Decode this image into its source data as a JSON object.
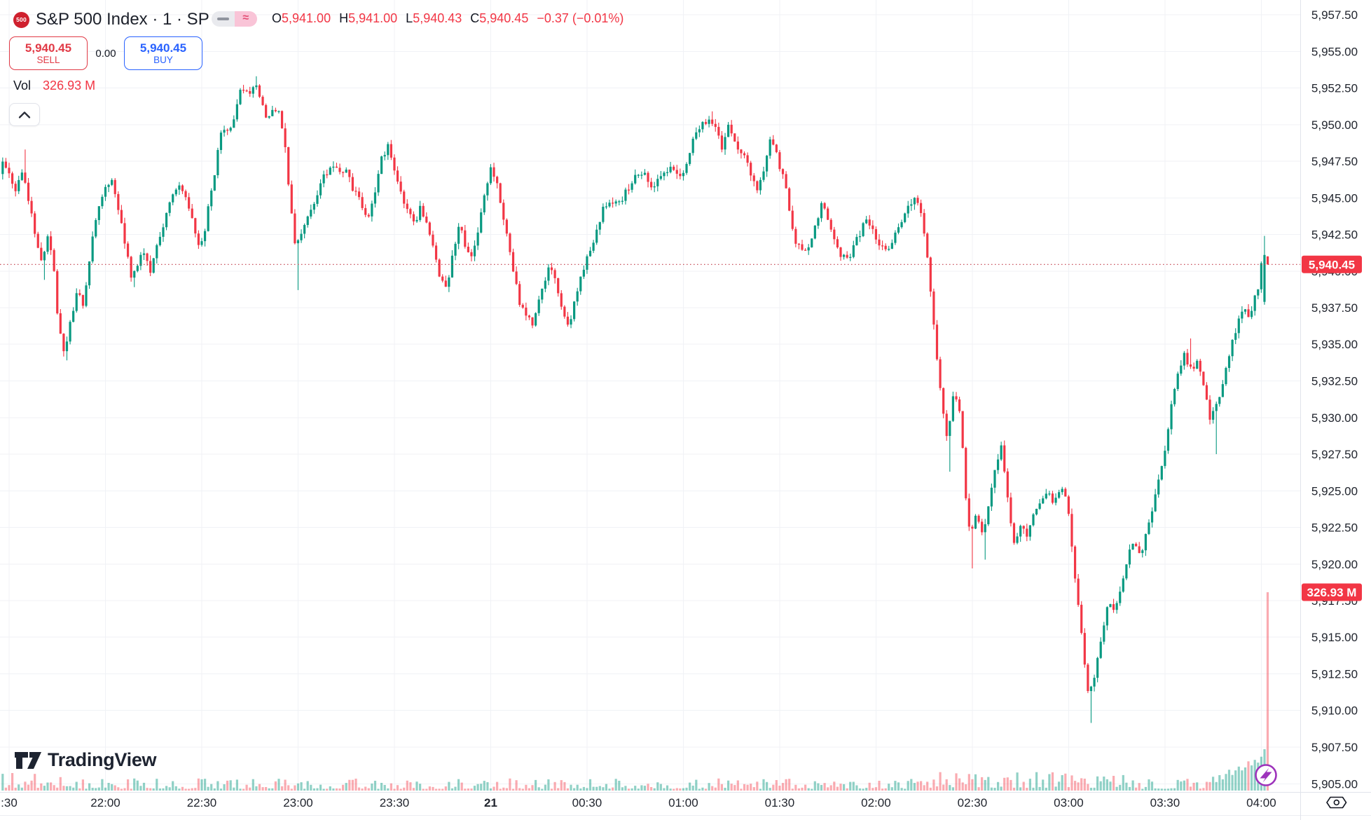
{
  "header": {
    "logo_text": "500",
    "title": "S&P 500 Index · 1 · SP",
    "toggle": {
      "right_glyph": "≈"
    },
    "ohlc": [
      {
        "k": "O",
        "v": "5,941.00"
      },
      {
        "k": "H",
        "v": "5,941.00"
      },
      {
        "k": "L",
        "v": "5,940.43"
      },
      {
        "k": "C",
        "v": "5,940.45"
      }
    ],
    "change": "−0.37 (−0.01%)"
  },
  "trade_panel": {
    "sell_price": "5,940.45",
    "sell_label": "SELL",
    "spread": "0.00",
    "buy_price": "5,940.45",
    "buy_label": "BUY"
  },
  "volume_indicator": {
    "label": "Vol",
    "value": "326.93 M"
  },
  "brand": {
    "name": "TradingView"
  },
  "icons": {
    "legend_toggle_left": "dash-icon",
    "legend_toggle_right": "approx-icon",
    "collapse": "chevron-up-icon",
    "quick_trade": "lightning-icon",
    "axis_corner": "hexagon-eye-icon"
  },
  "chart_data": {
    "type": "candlestick",
    "symbol": "S&P 500 Index",
    "interval": "1 minute",
    "exchange": "SP",
    "ohlc": {
      "open": 5941.0,
      "high": 5941.0,
      "low": 5940.43,
      "close": 5940.45
    },
    "change": -0.37,
    "change_pct": -0.01,
    "last_price": 5940.45,
    "last_price_label": "5,940.45",
    "volume_value": 326930000,
    "volume_label": "326.93 M",
    "y_axis": {
      "ticks": [
        5957.5,
        5955,
        5952.5,
        5950,
        5947.5,
        5945,
        5942.5,
        5940,
        5937.5,
        5935,
        5932.5,
        5930,
        5927.5,
        5925,
        5922.5,
        5920,
        5917.5,
        5915,
        5912.5,
        5910,
        5907.5,
        5905
      ],
      "labels": [
        "5,957.50",
        "5,955.00",
        "5,952.50",
        "5,950.00",
        "5,947.50",
        "5,945.00",
        "5,942.50",
        "5,940.00",
        "5,937.50",
        "5,935.00",
        "5,932.50",
        "5,930.00",
        "5,927.50",
        "5,925.00",
        "5,922.50",
        "5,920.00",
        "5,917.50",
        "5,915.00",
        "5,912.50",
        "5,910.00",
        "5,907.50",
        "5,905.00"
      ]
    },
    "x_axis": {
      "ticks": [
        {
          "t": 0,
          "label": ":30",
          "bold": false
        },
        {
          "t": 30,
          "label": "22:00",
          "bold": false
        },
        {
          "t": 60,
          "label": "22:30",
          "bold": false
        },
        {
          "t": 90,
          "label": "23:00",
          "bold": false
        },
        {
          "t": 120,
          "label": "23:30",
          "bold": false
        },
        {
          "t": 150,
          "label": "21",
          "bold": true
        },
        {
          "t": 180,
          "label": "00:30",
          "bold": false
        },
        {
          "t": 210,
          "label": "01:00",
          "bold": false
        },
        {
          "t": 240,
          "label": "01:30",
          "bold": false
        },
        {
          "t": 270,
          "label": "02:00",
          "bold": false
        },
        {
          "t": 300,
          "label": "02:30",
          "bold": false
        },
        {
          "t": 330,
          "label": "03:00",
          "bold": false
        },
        {
          "t": 360,
          "label": "03:30",
          "bold": false
        },
        {
          "t": 390,
          "label": "04:00",
          "bold": false
        }
      ]
    },
    "minutes_range": [
      -2,
      392
    ],
    "price_path": [
      [
        -3,
        5946.3
      ],
      [
        -1,
        5947.6
      ],
      [
        1,
        5946.6
      ],
      [
        3,
        5945.6
      ],
      [
        5,
        5946.9
      ],
      [
        7,
        5944.8
      ],
      [
        9,
        5942.2
      ],
      [
        11,
        5940.6
      ],
      [
        13,
        5942.6
      ],
      [
        15,
        5939.5
      ],
      [
        16,
        5936.5
      ],
      [
        18,
        5934.4
      ],
      [
        20,
        5936.8
      ],
      [
        22,
        5938.6
      ],
      [
        24,
        5937.6
      ],
      [
        26,
        5941.2
      ],
      [
        28,
        5943.6
      ],
      [
        30,
        5945.4
      ],
      [
        33,
        5946.2
      ],
      [
        36,
        5943.0
      ],
      [
        39,
        5939.4
      ],
      [
        42,
        5941.4
      ],
      [
        45,
        5940.0
      ],
      [
        48,
        5942.6
      ],
      [
        51,
        5944.6
      ],
      [
        54,
        5946.2
      ],
      [
        57,
        5944.2
      ],
      [
        60,
        5941.5
      ],
      [
        62,
        5943.0
      ],
      [
        63,
        5944.5
      ],
      [
        65,
        5947.0
      ],
      [
        67,
        5949.8
      ],
      [
        69,
        5949.5
      ],
      [
        71,
        5950.5
      ],
      [
        73,
        5952.4
      ],
      [
        75,
        5952.0
      ],
      [
        77,
        5952.8
      ],
      [
        79,
        5952.0
      ],
      [
        81,
        5950.3
      ],
      [
        83,
        5951.2
      ],
      [
        85,
        5950.8
      ],
      [
        87,
        5948.3
      ],
      [
        88,
        5945.6
      ],
      [
        90,
        5941.5
      ],
      [
        92,
        5942.8
      ],
      [
        94,
        5944.0
      ],
      [
        96,
        5944.6
      ],
      [
        99,
        5946.5
      ],
      [
        102,
        5947.3
      ],
      [
        104,
        5946.8
      ],
      [
        106,
        5946.8
      ],
      [
        108,
        5945.5
      ],
      [
        110,
        5944.8
      ],
      [
        113,
        5943.4
      ],
      [
        115,
        5945.8
      ],
      [
        117,
        5947.8
      ],
      [
        119,
        5948.6
      ],
      [
        121,
        5946.8
      ],
      [
        123,
        5945.3
      ],
      [
        125,
        5944.0
      ],
      [
        127,
        5943.2
      ],
      [
        129,
        5944.4
      ],
      [
        131,
        5943.0
      ],
      [
        133,
        5941.5
      ],
      [
        135,
        5939.6
      ],
      [
        137,
        5938.6
      ],
      [
        139,
        5941.2
      ],
      [
        141,
        5943.2
      ],
      [
        143,
        5941.6
      ],
      [
        145,
        5940.8
      ],
      [
        147,
        5942.8
      ],
      [
        149,
        5945.6
      ],
      [
        151,
        5947.2
      ],
      [
        153,
        5945.8
      ],
      [
        154,
        5944.3
      ],
      [
        156,
        5942.5
      ],
      [
        158,
        5939.8
      ],
      [
        160,
        5937.6
      ],
      [
        162,
        5936.8
      ],
      [
        164,
        5936.4
      ],
      [
        166,
        5938.2
      ],
      [
        169,
        5940.5
      ],
      [
        171,
        5939.2
      ],
      [
        173,
        5937.6
      ],
      [
        175,
        5936.1
      ],
      [
        177,
        5938.0
      ],
      [
        180,
        5940.5
      ],
      [
        183,
        5942.0
      ],
      [
        186,
        5944.3
      ],
      [
        189,
        5944.8
      ],
      [
        192,
        5945.0
      ],
      [
        195,
        5946.3
      ],
      [
        198,
        5946.8
      ],
      [
        201,
        5945.8
      ],
      [
        204,
        5946.3
      ],
      [
        207,
        5947.4
      ],
      [
        209,
        5946.6
      ],
      [
        211,
        5946.5
      ],
      [
        214,
        5949.3
      ],
      [
        217,
        5950.0
      ],
      [
        219,
        5950.4
      ],
      [
        221,
        5949.6
      ],
      [
        223,
        5948.3
      ],
      [
        225,
        5950.2
      ],
      [
        227,
        5948.8
      ],
      [
        230,
        5947.8
      ],
      [
        234,
        5945.3
      ],
      [
        236,
        5947.0
      ],
      [
        238,
        5949.2
      ],
      [
        241,
        5947.0
      ],
      [
        243,
        5945.6
      ],
      [
        244,
        5943.9
      ],
      [
        246,
        5941.9
      ],
      [
        248,
        5941.3
      ],
      [
        250,
        5941.6
      ],
      [
        252,
        5943.0
      ],
      [
        254,
        5944.6
      ],
      [
        256,
        5943.2
      ],
      [
        258,
        5941.8
      ],
      [
        260,
        5941.0
      ],
      [
        262,
        5940.7
      ],
      [
        265,
        5942.2
      ],
      [
        268,
        5943.6
      ],
      [
        271,
        5942.1
      ],
      [
        274,
        5941.2
      ],
      [
        277,
        5942.6
      ],
      [
        280,
        5944.2
      ],
      [
        283,
        5944.9
      ],
      [
        285,
        5944.0
      ],
      [
        287,
        5940.5
      ],
      [
        289,
        5936.0
      ],
      [
        291,
        5931.5
      ],
      [
        293,
        5928.5
      ],
      [
        295,
        5931.8
      ],
      [
        297,
        5930.3
      ],
      [
        299,
        5924.0
      ],
      [
        300,
        5921.9
      ],
      [
        302,
        5923.6
      ],
      [
        304,
        5922.0
      ],
      [
        306,
        5924.2
      ],
      [
        308,
        5926.6
      ],
      [
        310,
        5928.0
      ],
      [
        312,
        5924.0
      ],
      [
        314,
        5921.3
      ],
      [
        316,
        5922.9
      ],
      [
        318,
        5921.8
      ],
      [
        320,
        5923.4
      ],
      [
        322,
        5924.4
      ],
      [
        324,
        5925.1
      ],
      [
        326,
        5924.3
      ],
      [
        328,
        5925.1
      ],
      [
        330,
        5924.7
      ],
      [
        331,
        5923.0
      ],
      [
        333,
        5918.3
      ],
      [
        335,
        5915.0
      ],
      [
        337,
        5910.9
      ],
      [
        339,
        5912.4
      ],
      [
        341,
        5914.8
      ],
      [
        343,
        5917.2
      ],
      [
        345,
        5917.0
      ],
      [
        347,
        5918.3
      ],
      [
        349,
        5920.4
      ],
      [
        351,
        5921.4
      ],
      [
        353,
        5920.5
      ],
      [
        355,
        5922.2
      ],
      [
        357,
        5924.0
      ],
      [
        359,
        5926.0
      ],
      [
        361,
        5928.2
      ],
      [
        363,
        5931.0
      ],
      [
        365,
        5933.2
      ],
      [
        367,
        5934.3
      ],
      [
        369,
        5933.1
      ],
      [
        371,
        5933.9
      ],
      [
        373,
        5931.9
      ],
      [
        375,
        5929.9
      ],
      [
        377,
        5930.9
      ],
      [
        379,
        5932.5
      ],
      [
        381,
        5934.5
      ],
      [
        383,
        5936.1
      ],
      [
        385,
        5937.3
      ],
      [
        387,
        5936.9
      ],
      [
        389,
        5938.3
      ],
      [
        390,
        5939.0
      ],
      [
        391,
        5941.0
      ],
      [
        392,
        5940.45
      ]
    ],
    "wick_marks": [
      {
        "t": 5,
        "h": 5948.3
      },
      {
        "t": 11,
        "l": 5939.4
      },
      {
        "t": 18,
        "l": 5933.9
      },
      {
        "t": 39,
        "l": 5938.9
      },
      {
        "t": 77,
        "h": 5953.3
      },
      {
        "t": 90,
        "l": 5938.7
      },
      {
        "t": 219,
        "h": 5950.9
      },
      {
        "t": 293,
        "l": 5926.3
      },
      {
        "t": 300,
        "l": 5919.7
      },
      {
        "t": 304,
        "l": 5920.3
      },
      {
        "t": 337,
        "l": 5909.15
      },
      {
        "t": 368,
        "h": 5935.4
      },
      {
        "t": 376,
        "l": 5927.5
      }
    ],
    "final_candles": [
      {
        "o": 5937.9,
        "h": 5942.4,
        "l": 5937.7,
        "c": 5941.1
      },
      {
        "o": 5941.0,
        "h": 5941.0,
        "l": 5940.43,
        "c": 5940.45
      }
    ],
    "final_volumes": [
      59,
      283
    ],
    "legend_position": "top-left",
    "grid": true,
    "colors": {
      "up": "#089981",
      "down": "#f23645",
      "vol_up": "rgba(8,153,129,0.45)",
      "vol_down": "rgba(242,54,69,0.42)",
      "grid": "#f0f2f6",
      "axis_text": "#21252e",
      "axis_border": "#e0e3eb",
      "badge": "#f23645",
      "badge_text": "#ffffff",
      "last_price_line": "#c13a47",
      "lightning": "#9d32bb",
      "hexagon": "#131722"
    }
  }
}
